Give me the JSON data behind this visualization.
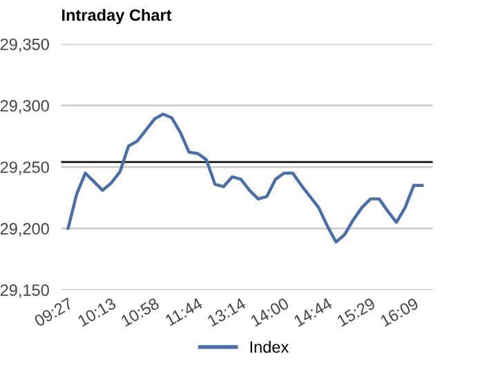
{
  "chart_data": {
    "type": "line",
    "title": "Intraday Chart",
    "categories": [
      "09:27",
      null,
      null,
      null,
      null,
      "10:13",
      null,
      null,
      null,
      null,
      "10:58",
      null,
      null,
      null,
      null,
      "11:44",
      null,
      null,
      null,
      null,
      "13:14",
      null,
      null,
      null,
      null,
      "14:00",
      null,
      null,
      null,
      null,
      "14:44",
      null,
      null,
      null,
      null,
      "15:29",
      null,
      null,
      null,
      null,
      "16:09",
      null
    ],
    "series": [
      {
        "name": "Index",
        "color": "#4a6ea8",
        "values": [
          29200,
          29228,
          29245,
          29238,
          29231,
          29237,
          29246,
          29267,
          29271,
          29280,
          29289,
          29293,
          29290,
          29278,
          29262,
          29261,
          29256,
          29236,
          29234,
          29242,
          29240,
          29231,
          29224,
          29226,
          29240,
          29245,
          29245,
          29235,
          29226,
          29217,
          29202,
          29189,
          29195,
          29207,
          29217,
          29224,
          29224,
          29214,
          29205,
          29217,
          29235,
          29235
        ]
      }
    ],
    "ylim": [
      29150,
      29350
    ],
    "yticks": [
      {
        "value": 29150,
        "label": "29,150"
      },
      {
        "value": 29200,
        "label": "29,200"
      },
      {
        "value": 29250,
        "label": "29,250"
      },
      {
        "value": 29300,
        "label": "29,300"
      },
      {
        "value": 29350,
        "label": "29,350"
      }
    ],
    "ref_lines": [
      {
        "axis": "y",
        "value": 29254,
        "color": "#111111"
      }
    ],
    "grid": "y",
    "legend": "bottom",
    "marker": "none",
    "line_style": "solid"
  }
}
